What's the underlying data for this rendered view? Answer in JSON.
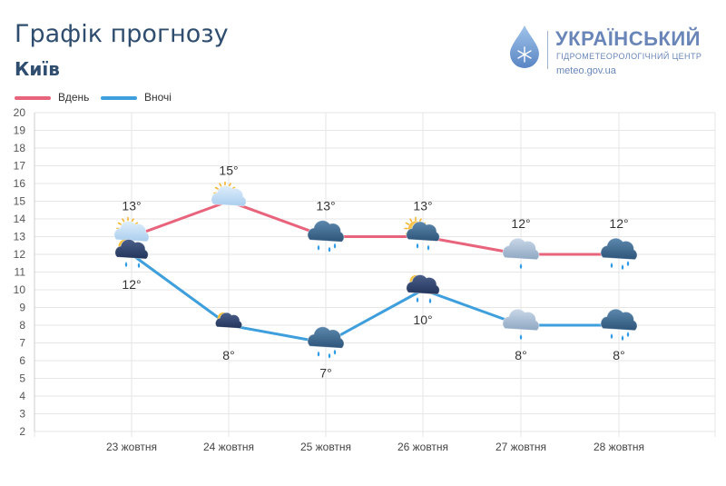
{
  "header": {
    "title": "Графік прогнозу",
    "city": "Київ"
  },
  "logo": {
    "name": "УКРАЇНСЬКИЙ",
    "subtitle": "ГІДРОМЕТЕОРОЛОГІЧНИЙ ЦЕНТР",
    "url": "meteo.gov.ua"
  },
  "colors": {
    "day": "#e8637c",
    "night": "#3e9fdc",
    "text": "#2f4d6e"
  },
  "chart_data": {
    "type": "line",
    "title": "Графік прогнозу",
    "subtitle": "Київ",
    "xlabel": "",
    "ylabel": "",
    "ylim": [
      2,
      20
    ],
    "yticks": [
      "2",
      "3",
      "4",
      "5",
      "6",
      "7",
      "8",
      "9",
      "10",
      "11",
      "12",
      "13",
      "14",
      "15",
      "16",
      "17",
      "18",
      "19",
      "20"
    ],
    "grid": true,
    "legend_position": "top-left",
    "categories": [
      "23 жовтня",
      "24 жовтня",
      "25 жовтня",
      "26 жовтня",
      "27 жовтня",
      "28 жовтня"
    ],
    "series": [
      {
        "name": "Вдень",
        "values": [
          13,
          15,
          13,
          13,
          12,
          12
        ],
        "labels": [
          "13°",
          "15°",
          "13°",
          "13°",
          "12°",
          "12°"
        ],
        "icons": [
          "sun-cloud-icon",
          "sun-cloud-icon",
          "rain-cloud-icon",
          "sun-rain-cloud-icon",
          "light-rain-cloud-icon",
          "rain-cloud-icon"
        ]
      },
      {
        "name": "Вночі",
        "values": [
          12,
          8,
          7,
          10,
          8,
          8
        ],
        "labels": [
          "12°",
          "8°",
          "7°",
          "10°",
          "8°",
          "8°"
        ],
        "icons": [
          "moon-rain-cloud-icon",
          "moon-cloud-icon",
          "rain-cloud-icon",
          "moon-rain-cloud-icon",
          "light-rain-cloud-icon",
          "rain-cloud-icon"
        ]
      }
    ]
  }
}
